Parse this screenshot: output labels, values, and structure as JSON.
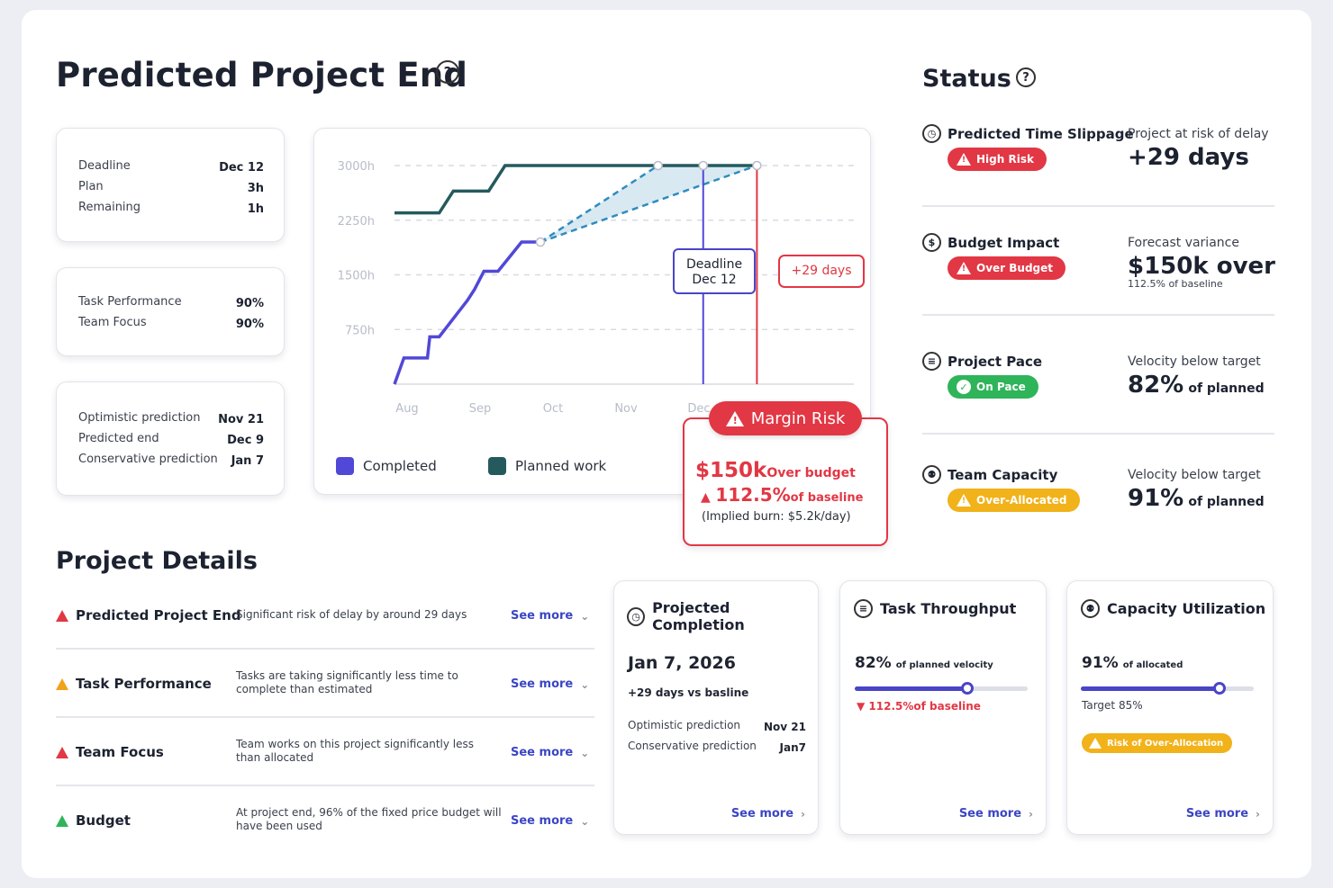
{
  "header": {
    "title": "Predicted Project End",
    "help_icon": "?",
    "status_title": "Status",
    "details_title": "Project Details"
  },
  "summary_cards": {
    "schedule": [
      {
        "label": "Deadline",
        "value": "Dec 12"
      },
      {
        "label": "Plan",
        "value": "3h"
      },
      {
        "label": "Remaining",
        "value": "1h"
      }
    ],
    "performance": [
      {
        "label": "Task Performance",
        "value": "90%"
      },
      {
        "label": "Team Focus",
        "value": "90%"
      }
    ],
    "predictions": [
      {
        "label": "Optimistic prediction",
        "value": "Nov 21"
      },
      {
        "label": "Predicted end",
        "value": "Dec 9"
      },
      {
        "label": "Conservative prediction",
        "value": "Jan 7"
      }
    ]
  },
  "chart": {
    "y_ticks": [
      "3000h",
      "2250h",
      "1500h",
      "750h"
    ],
    "x_ticks": [
      "Aug",
      "Sep",
      "Oct",
      "Nov",
      "Dec"
    ],
    "deadline_label_1": "Deadline",
    "deadline_label_2": "Dec 12",
    "slip_label": "+29 days",
    "legend_completed": "Completed",
    "legend_planned": "Planned work",
    "colors": {
      "completed": "#5148d8",
      "planned": "#245a5e",
      "projection": "#2f8cbf",
      "risk": "#e23744"
    }
  },
  "chart_data": {
    "type": "line",
    "x_ticks": [
      "Aug",
      "Sep",
      "Oct",
      "Nov",
      "Dec"
    ],
    "y_ticks": [
      "750h",
      "1500h",
      "2250h",
      "3000h"
    ],
    "ylim": [
      0,
      3000
    ],
    "series": [
      {
        "name": "Completed",
        "points": [
          [
            "Aug 1",
            0
          ],
          [
            "Aug 5",
            360
          ],
          [
            "Aug 15",
            360
          ],
          [
            "Aug 16",
            650
          ],
          [
            "Aug 20",
            650
          ],
          [
            "Sep 1",
            1150
          ],
          [
            "Sep 4",
            1300
          ],
          [
            "Sep 8",
            1550
          ],
          [
            "Sep 14",
            1550
          ],
          [
            "Sep 24",
            1950
          ],
          [
            "Oct 1",
            1950
          ]
        ]
      },
      {
        "name": "Planned work",
        "points": [
          [
            "Aug 1",
            2350
          ],
          [
            "Aug 20",
            2350
          ],
          [
            "Aug 26",
            2650
          ],
          [
            "Sep 10",
            2650
          ],
          [
            "Sep 17",
            3000
          ],
          [
            "Dec 31",
            3000
          ]
        ]
      }
    ],
    "projections": [
      {
        "from": [
          "Oct 1",
          1950
        ],
        "to": [
          "Nov 20",
          3000
        ]
      },
      {
        "from": [
          "Oct 1",
          1950
        ],
        "to": [
          "Dec 31",
          3000
        ]
      }
    ],
    "markers": {
      "deadline": "Dec 12",
      "slip": "+29 days"
    }
  },
  "margin_risk": {
    "title": "Margin Risk",
    "amount": "$150k",
    "amount_suffix": "Over budget",
    "percent": "112.5%",
    "percent_suffix": "of baseline",
    "note": "(Implied burn: $5.2k/day)"
  },
  "status": [
    {
      "title": "Predicted Time Slippage",
      "icon": "clock-icon",
      "glyph": "◷",
      "badge": "High Risk",
      "badge_color": "red",
      "label": "Project at risk of delay",
      "big": "+29 days",
      "sub": "",
      "small": ""
    },
    {
      "title": "Budget Impact",
      "icon": "dollar-icon",
      "glyph": "$",
      "badge": "Over Budget",
      "badge_color": "red",
      "label": "Forecast variance",
      "big": "$150k over",
      "sub": "",
      "small": "112.5% of baseline"
    },
    {
      "title": "Project Pace",
      "icon": "pace-icon",
      "glyph": "≡",
      "badge": "On Pace",
      "badge_color": "green",
      "label": "Velocity below target",
      "big": "82%",
      "sub": "of planned",
      "small": ""
    },
    {
      "title": "Team Capacity",
      "icon": "team-icon",
      "glyph": "⚉",
      "badge": "Over-Allocated",
      "badge_color": "amber",
      "label": "Velocity below target",
      "big": "91%",
      "sub": "of planned",
      "small": ""
    }
  ],
  "details": [
    {
      "title": "Predicted Project End",
      "level": "red",
      "desc1": "Significant risk of delay by around 29 days",
      "desc2": "",
      "link": "See more"
    },
    {
      "title": "Task Performance",
      "level": "amber",
      "desc1": "Tasks are taking significantly less time to",
      "desc2": "complete than estimated",
      "link": "See more"
    },
    {
      "title": "Team Focus",
      "level": "red",
      "desc1": "Team works on this project significantly less",
      "desc2": "than allocated",
      "link": "See more"
    },
    {
      "title": "Budget",
      "level": "green",
      "desc1": "At project end, 96% of the fixed price budget will",
      "desc2": "have been used",
      "link": "See more"
    }
  ],
  "metric_cards": {
    "completion": {
      "title": "Projected Completion",
      "date": "Jan 7, 2026",
      "delta": "+29 days vs basline",
      "rows": [
        {
          "label": "Optimistic prediction",
          "value": "Nov 21"
        },
        {
          "label": "Conservative prediction",
          "value": "Jan7"
        }
      ],
      "link": "See more"
    },
    "throughput": {
      "title": "Task Throughput",
      "big": "82%",
      "big_suffix": "of planned velocity",
      "progress": 0.65,
      "note": "112.5%of baseline",
      "link": "See more"
    },
    "capacity": {
      "title": "Capacity Utilization",
      "big": "91%",
      "big_suffix": "of allocated",
      "progress": 0.8,
      "target": "Target 85%",
      "badge": "Risk of Over-Allocation",
      "link": "See more"
    }
  }
}
